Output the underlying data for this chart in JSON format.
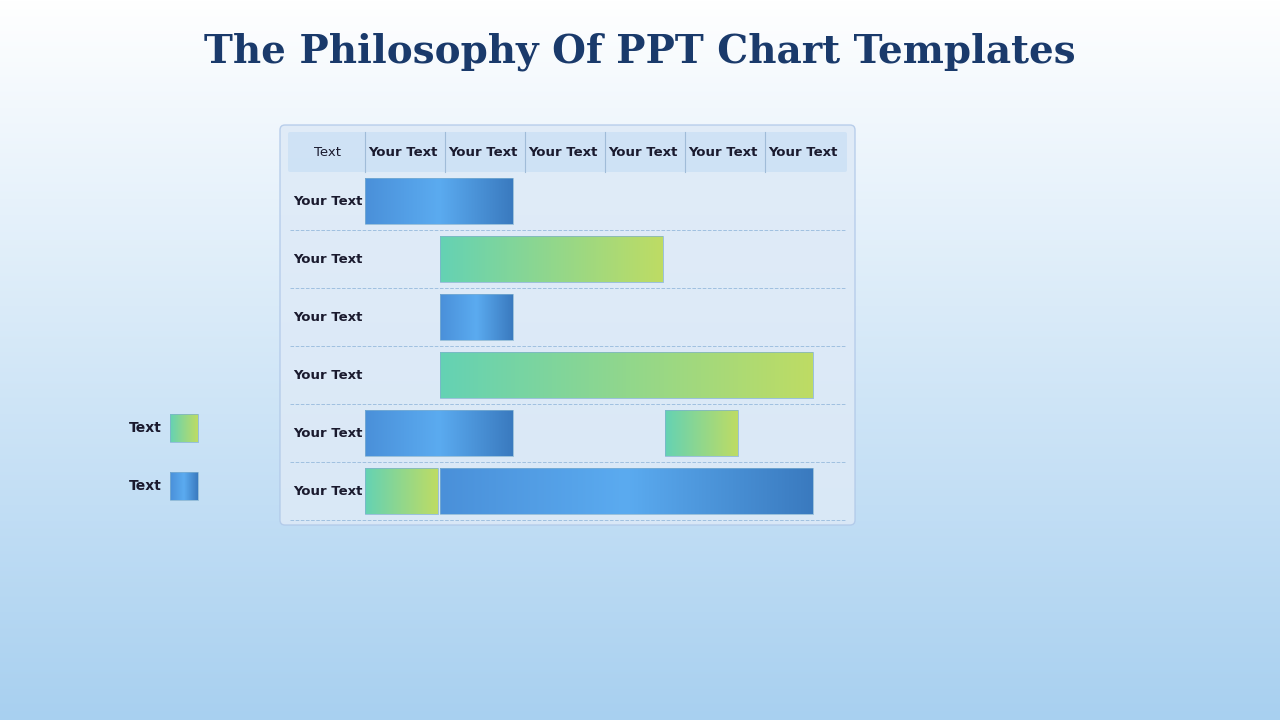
{
  "title": "The Philosophy Of PPT Chart Templates",
  "title_color": "#1a3a6b",
  "title_fontsize": 28,
  "bg_top_color": "#a8d0f0",
  "bg_bottom_color": "#ffffff",
  "panel_color": "#deeaf7",
  "panel_border_color": "#c0d8f0",
  "header_labels": [
    "Text",
    "Your Text",
    "Your Text",
    "Your Text",
    "Your Text",
    "Your Text",
    "Your Text"
  ],
  "row_labels": [
    "Your Text",
    "Your Text",
    "Your Text",
    "Your Text",
    "Your Text",
    "Your Text"
  ],
  "legend_labels": [
    "Text",
    "Text"
  ],
  "legend_colors": [
    "green_grad",
    "blue_grad"
  ],
  "rows": [
    {
      "type": "blue",
      "start": 0,
      "end": 2
    },
    {
      "type": "green",
      "start": 1,
      "end": 4
    },
    {
      "type": "blue",
      "start": 1,
      "end": 2
    },
    {
      "type": "green",
      "start": 1,
      "end": 6
    },
    {
      "type": "blue_green",
      "segments": [
        {
          "type": "blue",
          "start": 0,
          "end": 2
        },
        {
          "type": "green",
          "start": 4,
          "end": 5
        }
      ]
    },
    {
      "type": "blue_green2",
      "segments": [
        {
          "type": "green",
          "start": 0,
          "end": 1
        },
        {
          "type": "blue",
          "start": 1,
          "end": 6
        }
      ]
    }
  ]
}
